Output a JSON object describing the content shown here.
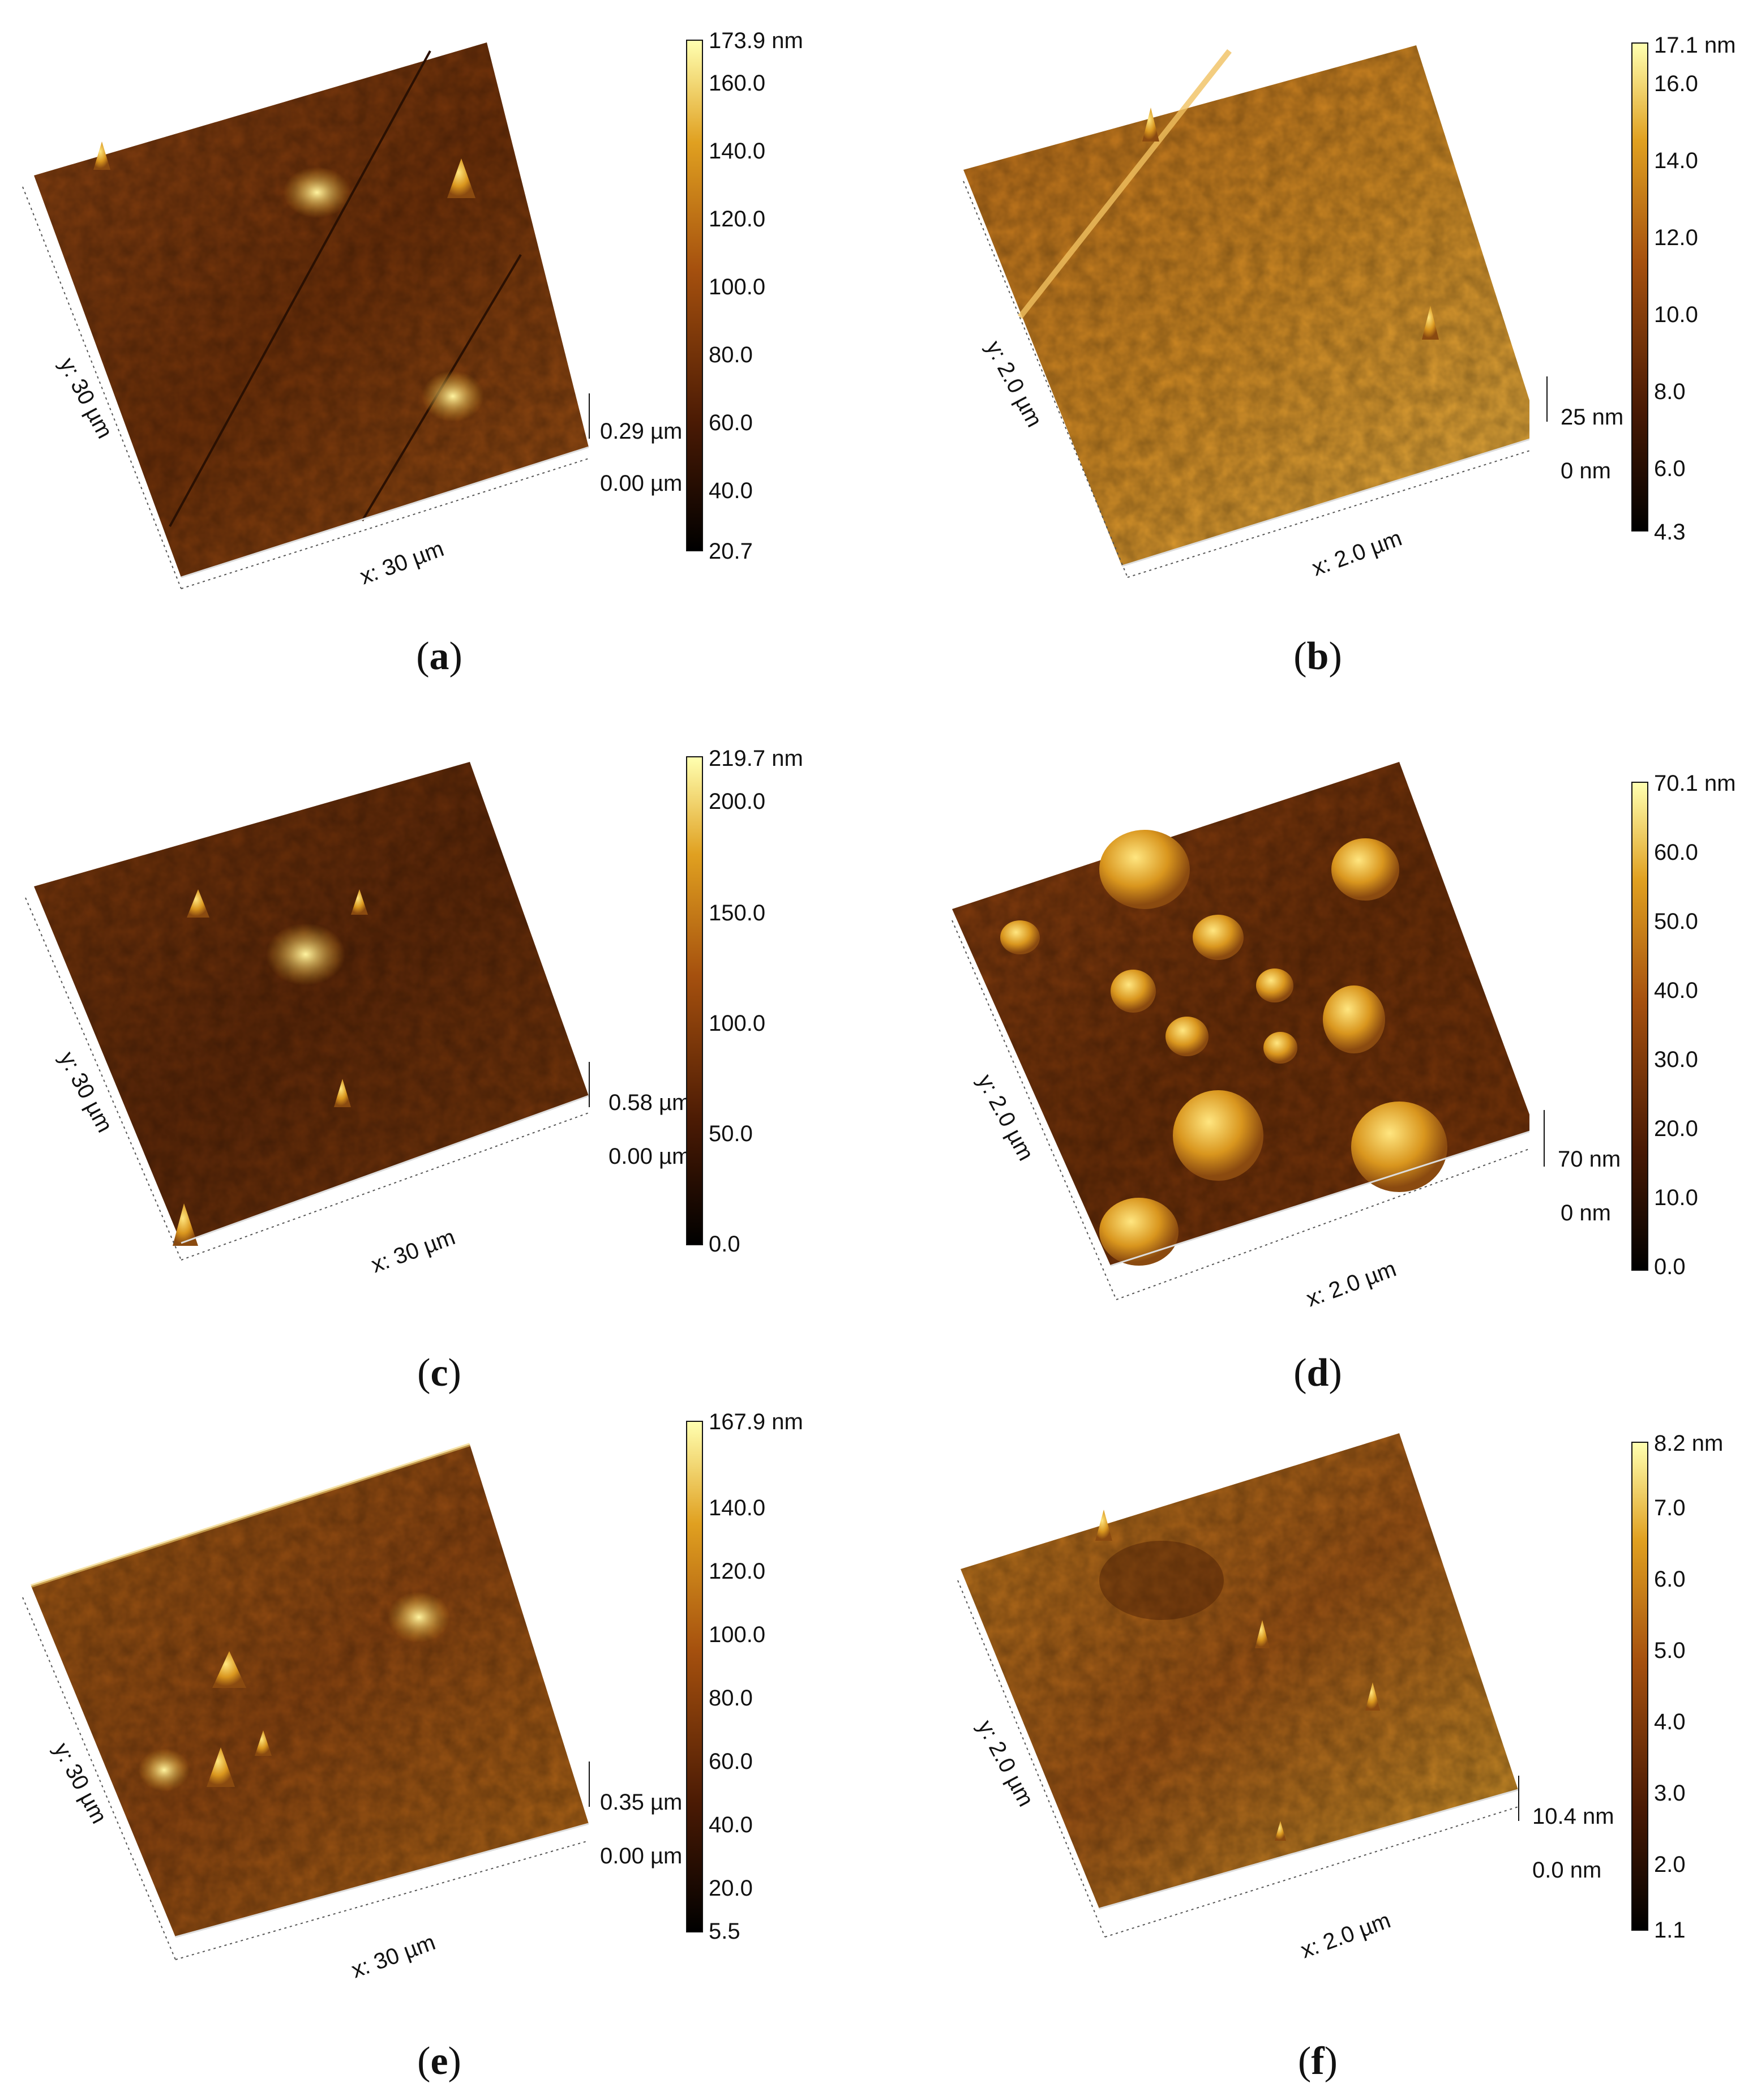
{
  "panels": [
    {
      "id": "a",
      "caption_letter": "a",
      "y_axis": "y: 30 µm",
      "x_axis": "x: 30 µm",
      "z_top": "0.29 µm",
      "z_bottom": "0.00 µm",
      "colorbar": [
        "173.9 nm",
        "160.0",
        "140.0",
        "120.0",
        "100.0",
        "80.0",
        "60.0",
        "40.0",
        "20.7"
      ]
    },
    {
      "id": "b",
      "caption_letter": "b",
      "y_axis": "y: 2.0 µm",
      "x_axis": "x: 2.0 µm",
      "z_top": "25 nm",
      "z_bottom": "0 nm",
      "colorbar": [
        "17.1 nm",
        "16.0",
        "14.0",
        "12.0",
        "10.0",
        "8.0",
        "6.0",
        "4.3"
      ]
    },
    {
      "id": "c",
      "caption_letter": "c",
      "y_axis": "y: 30 µm",
      "x_axis": "x: 30 µm",
      "z_top": "0.58 µm",
      "z_bottom": "0.00 µm",
      "colorbar": [
        "219.7 nm",
        "200.0",
        "150.0",
        "100.0",
        "50.0",
        "0.0"
      ]
    },
    {
      "id": "d",
      "caption_letter": "d",
      "y_axis": "y: 2.0 µm",
      "x_axis": "x: 2.0 µm",
      "z_top": "70 nm",
      "z_bottom": "0 nm",
      "colorbar": [
        "70.1 nm",
        "60.0",
        "50.0",
        "40.0",
        "30.0",
        "20.0",
        "10.0",
        "0.0"
      ]
    },
    {
      "id": "e",
      "caption_letter": "e",
      "y_axis": "y: 30 µm",
      "x_axis": "x: 30 µm",
      "z_top": "0.35 µm",
      "z_bottom": "0.00 µm",
      "colorbar": [
        "167.9 nm",
        "140.0",
        "120.0",
        "100.0",
        "80.0",
        "60.0",
        "40.0",
        "20.0",
        "5.5"
      ]
    },
    {
      "id": "f",
      "caption_letter": "f",
      "y_axis": "y: 2.0 µm",
      "x_axis": "x: 2.0 µm",
      "z_top": "10.4 nm",
      "z_bottom": "0.0 nm",
      "colorbar": [
        "8.2 nm",
        "7.0",
        "6.0",
        "5.0",
        "4.0",
        "3.0",
        "2.0",
        "1.1"
      ]
    }
  ],
  "colors": {
    "afm_low": "#1a0a02",
    "afm_mid": "#8a3f0c",
    "afm_high": "#ffff99"
  }
}
